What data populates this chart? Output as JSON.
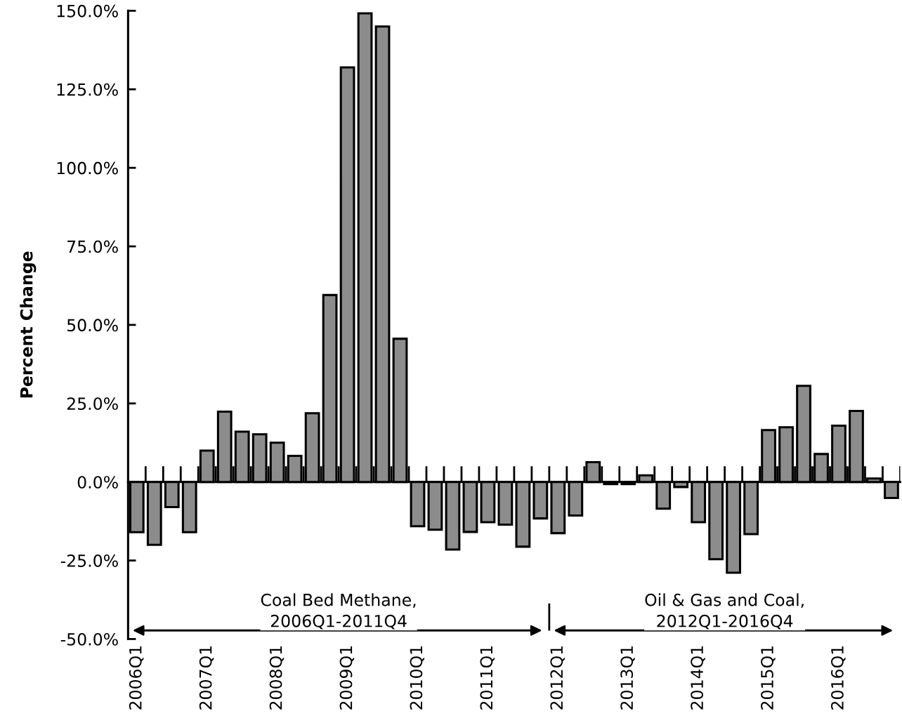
{
  "chart_data": {
    "type": "bar",
    "ylabel": "Percent Change",
    "categories": [
      "2006Q1",
      null,
      null,
      null,
      "2007Q1",
      null,
      null,
      null,
      "2008Q1",
      null,
      null,
      null,
      "2009Q1",
      null,
      null,
      null,
      "2010Q1",
      null,
      null,
      null,
      "2011Q1",
      null,
      null,
      null,
      "2012Q1",
      null,
      null,
      null,
      "2013Q1",
      null,
      null,
      null,
      "2014Q1",
      null,
      null,
      null,
      "2015Q1",
      null,
      null,
      null,
      "2016Q1",
      null,
      null,
      null
    ],
    "values": [
      -16,
      -20,
      -8,
      -16,
      10,
      22.4,
      16,
      15.2,
      12.5,
      8.3,
      21.9,
      59.5,
      132,
      149.2,
      145,
      45.6,
      -14.1,
      -15.2,
      -21.5,
      -15.9,
      -12.8,
      -13.6,
      -20.6,
      -11.6,
      -16.3,
      -10.7,
      6.3,
      -0.7,
      -0.7,
      2.1,
      -8.5,
      -1.6,
      -12.8,
      -24.6,
      -28.9,
      -16.6,
      16.5,
      17.4,
      30.6,
      8.9,
      17.9,
      22.6,
      1.1,
      -5.1
    ],
    "color": "#8c8c8c",
    "ylim": [
      -50,
      150
    ],
    "yticks": [
      {
        "value": -50,
        "label": "-50.0%"
      },
      {
        "value": -25,
        "label": "-25.0%"
      },
      {
        "value": 0,
        "label": "0.0%"
      },
      {
        "value": 25,
        "label": "25.0%"
      },
      {
        "value": 50,
        "label": "50.0%"
      },
      {
        "value": 75,
        "label": "75.0%"
      },
      {
        "value": 100,
        "label": "100.0%"
      },
      {
        "value": 125,
        "label": "125.0%"
      },
      {
        "value": 150,
        "label": "150.0%"
      }
    ],
    "annotations": [
      "Coal Bed Methane,\n2006Q1-2011Q4",
      "Oil & Gas and Coal,\n2012Q1-2016Q4"
    ],
    "legend": false
  }
}
